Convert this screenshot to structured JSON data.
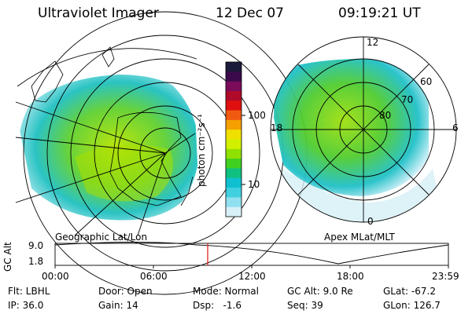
{
  "header": {
    "instrument": "Ultraviolet Imager",
    "date": "12 Dec 07",
    "time": "09:19:21 UT"
  },
  "left_panel": {
    "label": "Geographic Lat/Lon"
  },
  "right_panel": {
    "label": "Apex MLat/MLT",
    "mlt_labels": [
      "12",
      "18",
      "6",
      "0"
    ],
    "mlat_labels": [
      "60",
      "70",
      "80"
    ]
  },
  "colorbar": {
    "unit_label": "photon cm⁻²s⁻¹",
    "tick_labels": [
      "100",
      "10"
    ],
    "colors": [
      "#1a1a3a",
      "#3a0a4a",
      "#7a0c5a",
      "#b00a2a",
      "#e01010",
      "#f05a10",
      "#f5a000",
      "#f0e000",
      "#d0f000",
      "#90e000",
      "#40d020",
      "#10c080",
      "#10c0d0",
      "#40d0e0",
      "#90e0f0",
      "#d8f0f8"
    ]
  },
  "altitude_plot": {
    "y_axis_label": "GC Alt",
    "y_max_label": "9.0",
    "y_min_label": "1.8",
    "x_tick_labels": [
      "00:00",
      "06:00",
      "12:00",
      "18:00",
      "23:59"
    ],
    "current_time_fraction": 0.388,
    "marker_color": "#e01010"
  },
  "info": {
    "flt": "Flt: LBHL",
    "ip": "IP: 36.0",
    "door": "Door: Open",
    "gain": "Gain: 14",
    "mode": "Mode: Normal",
    "dsp": "Dsp:   -1.6",
    "gc_alt": "GC Alt: 9.0 Re",
    "seq": "Seq: 39",
    "glat": "GLat: -67.2",
    "glon": "GLon: 126.7"
  }
}
